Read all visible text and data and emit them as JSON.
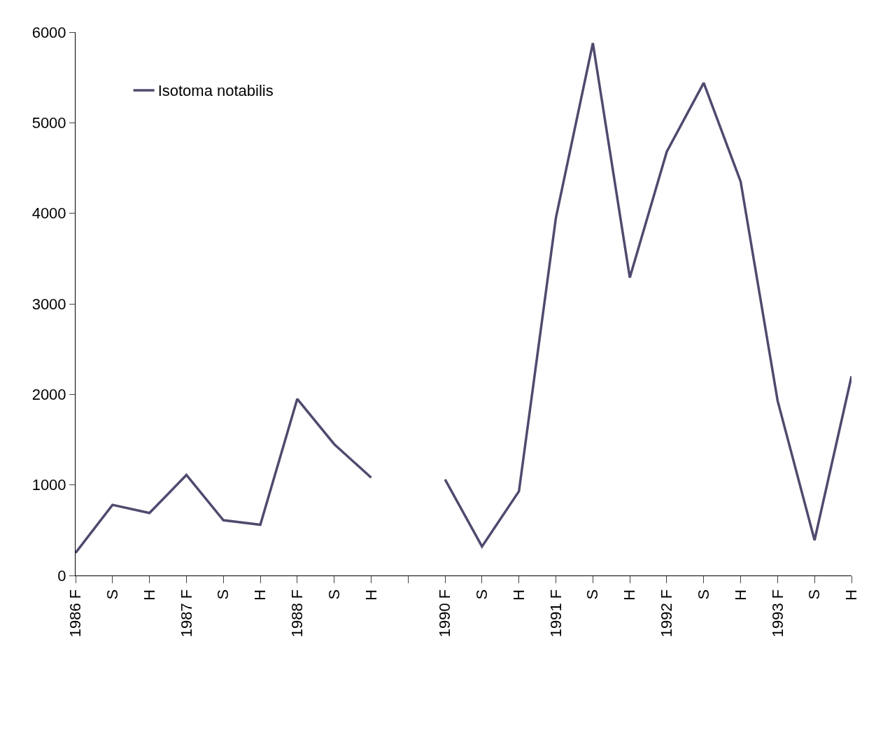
{
  "chart_data": {
    "type": "line",
    "categories": [
      "1986 F",
      "S",
      "H",
      "1987 F",
      "S",
      "H",
      "1988 F",
      "S",
      "H",
      null,
      "1990 F",
      "S",
      "H",
      "1991 F",
      "S",
      "H",
      "1992 F",
      "S",
      "H",
      "1993 F",
      "S",
      "H"
    ],
    "series": [
      {
        "name": "Isotoma notabilis",
        "color": "#4f4a6e",
        "values": [
          250,
          780,
          690,
          1110,
          610,
          560,
          1950,
          1450,
          1080,
          null,
          1060,
          320,
          930,
          3950,
          5880,
          3290,
          4680,
          5440,
          4350,
          1930,
          390,
          2200
        ]
      }
    ],
    "ylim": [
      0,
      6000
    ],
    "yticks": [
      0,
      1000,
      2000,
      3000,
      4000,
      5000,
      6000
    ],
    "legend": "top left",
    "marker": "none",
    "line_style": "solid"
  }
}
